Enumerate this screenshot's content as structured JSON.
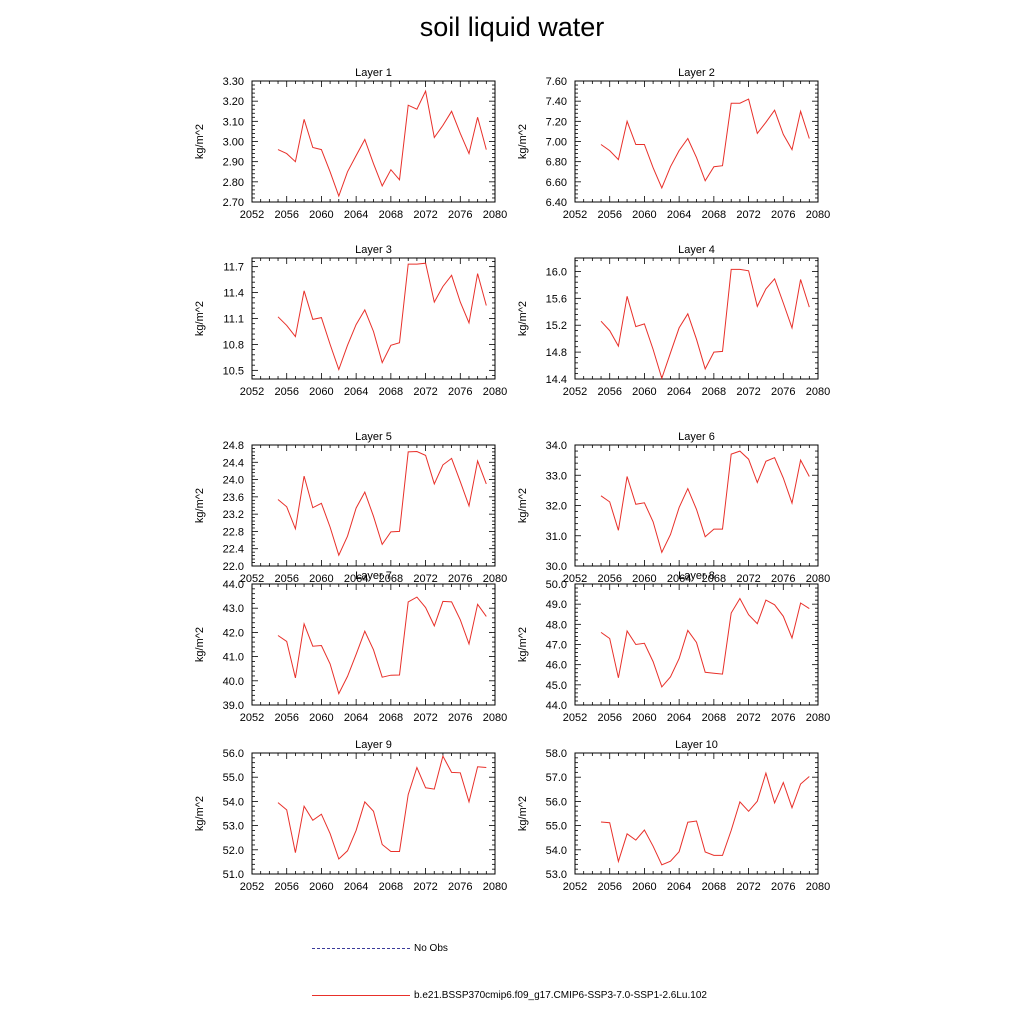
{
  "title": "soil liquid water",
  "legend": {
    "no_obs_label": "No Obs",
    "model_label": "b.e21.BSSP370cmip6.f09_g17.CMIP6-SSP3-7.0-SSP1-2.6Lu.102"
  },
  "colors": {
    "model_line": "#e8302a",
    "no_obs_line": "#3b3b9a",
    "axis": "#000000"
  },
  "chart_data": [
    {
      "type": "line",
      "title": "Layer 1",
      "xlabel": "",
      "ylabel": "kg/m^2",
      "xlim": [
        2052,
        2080
      ],
      "ylim": [
        2.7,
        3.3
      ],
      "xticks": [
        2052,
        2056,
        2060,
        2064,
        2068,
        2072,
        2076,
        2080
      ],
      "yticks": [
        "2.70",
        "2.80",
        "2.90",
        "3.00",
        "3.10",
        "3.20",
        "3.30"
      ],
      "x": [
        2055,
        2056,
        2057,
        2058,
        2059,
        2060,
        2061,
        2062,
        2063,
        2064,
        2065,
        2066,
        2067,
        2068,
        2069,
        2070,
        2071,
        2072,
        2073,
        2074,
        2075,
        2076,
        2077,
        2078,
        2079
      ],
      "series": [
        {
          "values": [
            2.96,
            2.94,
            2.9,
            3.11,
            2.97,
            2.96,
            2.85,
            2.73,
            2.85,
            2.93,
            3.01,
            2.89,
            2.78,
            2.86,
            2.81,
            3.18,
            3.16,
            3.25,
            3.02,
            3.08,
            3.15,
            3.04,
            2.94,
            3.12,
            2.96
          ]
        }
      ]
    },
    {
      "type": "line",
      "title": "Layer 2",
      "xlabel": "",
      "ylabel": "kg/m^2",
      "xlim": [
        2052,
        2080
      ],
      "ylim": [
        6.4,
        7.6
      ],
      "xticks": [
        2052,
        2056,
        2060,
        2064,
        2068,
        2072,
        2076,
        2080
      ],
      "yticks": [
        "6.40",
        "6.60",
        "6.80",
        "7.00",
        "7.20",
        "7.40",
        "7.60"
      ],
      "x": [
        2055,
        2056,
        2057,
        2058,
        2059,
        2060,
        2061,
        2062,
        2063,
        2064,
        2065,
        2066,
        2067,
        2068,
        2069,
        2070,
        2071,
        2072,
        2073,
        2074,
        2075,
        2076,
        2077,
        2078,
        2079
      ],
      "series": [
        {
          "values": [
            6.97,
            6.91,
            6.82,
            7.2,
            6.97,
            6.97,
            6.74,
            6.54,
            6.75,
            6.91,
            7.03,
            6.84,
            6.61,
            6.75,
            6.76,
            7.38,
            7.38,
            7.42,
            7.08,
            7.19,
            7.31,
            7.07,
            6.92,
            7.3,
            7.03
          ]
        }
      ]
    },
    {
      "type": "line",
      "title": "Layer 3",
      "xlabel": "",
      "ylabel": "kg/m^2",
      "xlim": [
        2052,
        2080
      ],
      "ylim": [
        10.4,
        11.8
      ],
      "xticks": [
        2052,
        2056,
        2060,
        2064,
        2068,
        2072,
        2076,
        2080
      ],
      "yticks": [
        "10.5",
        "10.8",
        "11.1",
        "11.4",
        "11.7"
      ],
      "x": [
        2055,
        2056,
        2057,
        2058,
        2059,
        2060,
        2061,
        2062,
        2063,
        2064,
        2065,
        2066,
        2067,
        2068,
        2069,
        2070,
        2071,
        2072,
        2073,
        2074,
        2075,
        2076,
        2077,
        2078,
        2079
      ],
      "series": [
        {
          "values": [
            11.12,
            11.02,
            10.89,
            11.42,
            11.09,
            11.11,
            10.8,
            10.51,
            10.79,
            11.03,
            11.2,
            10.95,
            10.59,
            10.79,
            10.82,
            11.73,
            11.73,
            11.74,
            11.29,
            11.47,
            11.6,
            11.29,
            11.05,
            11.62,
            11.25
          ]
        }
      ]
    },
    {
      "type": "line",
      "title": "Layer 4",
      "xlabel": "",
      "ylabel": "kg/m^2",
      "xlim": [
        2052,
        2080
      ],
      "ylim": [
        14.4,
        16.2
      ],
      "xticks": [
        2052,
        2056,
        2060,
        2064,
        2068,
        2072,
        2076,
        2080
      ],
      "yticks": [
        "14.4",
        "14.8",
        "15.2",
        "15.6",
        "16.0"
      ],
      "x": [
        2055,
        2056,
        2057,
        2058,
        2059,
        2060,
        2061,
        2062,
        2063,
        2064,
        2065,
        2066,
        2067,
        2068,
        2069,
        2070,
        2071,
        2072,
        2073,
        2074,
        2075,
        2076,
        2077,
        2078,
        2079
      ],
      "series": [
        {
          "values": [
            15.26,
            15.12,
            14.89,
            15.63,
            15.18,
            15.22,
            14.84,
            14.41,
            14.79,
            15.16,
            15.37,
            14.99,
            14.55,
            14.8,
            14.81,
            16.03,
            16.03,
            16.01,
            15.48,
            15.74,
            15.89,
            15.53,
            15.16,
            15.88,
            15.47
          ]
        }
      ]
    },
    {
      "type": "line",
      "title": "Layer 5",
      "xlabel": "",
      "ylabel": "kg/m^2",
      "xlim": [
        2052,
        2080
      ],
      "ylim": [
        22.0,
        24.8
      ],
      "xticks": [
        2052,
        2056,
        2060,
        2064,
        2068,
        2072,
        2076,
        2080
      ],
      "yticks": [
        "22.0",
        "22.4",
        "22.8",
        "23.2",
        "23.6",
        "24.0",
        "24.4",
        "24.8"
      ],
      "x": [
        2055,
        2056,
        2057,
        2058,
        2059,
        2060,
        2061,
        2062,
        2063,
        2064,
        2065,
        2066,
        2067,
        2068,
        2069,
        2070,
        2071,
        2072,
        2073,
        2074,
        2075,
        2076,
        2077,
        2078,
        2079
      ],
      "series": [
        {
          "values": [
            23.54,
            23.37,
            22.86,
            24.08,
            23.35,
            23.45,
            22.9,
            22.25,
            22.69,
            23.34,
            23.71,
            23.15,
            22.5,
            22.79,
            22.8,
            24.64,
            24.65,
            24.56,
            23.9,
            24.34,
            24.49,
            23.95,
            23.39,
            24.43,
            23.9
          ]
        }
      ]
    },
    {
      "type": "line",
      "title": "Layer 6",
      "xlabel": "",
      "ylabel": "kg/m^2",
      "xlim": [
        2052,
        2080
      ],
      "ylim": [
        30.0,
        34.0
      ],
      "xticks": [
        2052,
        2056,
        2060,
        2064,
        2068,
        2072,
        2076,
        2080
      ],
      "yticks": [
        "30.0",
        "31.0",
        "32.0",
        "33.0",
        "34.0"
      ],
      "x": [
        2055,
        2056,
        2057,
        2058,
        2059,
        2060,
        2061,
        2062,
        2063,
        2064,
        2065,
        2066,
        2067,
        2068,
        2069,
        2070,
        2071,
        2072,
        2073,
        2074,
        2075,
        2076,
        2077,
        2078,
        2079
      ],
      "series": [
        {
          "values": [
            32.32,
            32.12,
            31.18,
            32.96,
            32.04,
            32.09,
            31.46,
            30.45,
            31.04,
            31.93,
            32.56,
            31.87,
            30.97,
            31.22,
            31.22,
            33.7,
            33.8,
            33.53,
            32.76,
            33.46,
            33.58,
            32.91,
            32.08,
            33.5,
            32.96
          ]
        }
      ]
    },
    {
      "type": "line",
      "title": "Layer 7",
      "xlabel": "",
      "ylabel": "kg/m^2",
      "xlim": [
        2052,
        2080
      ],
      "ylim": [
        39.0,
        44.0
      ],
      "xticks": [
        2052,
        2056,
        2060,
        2064,
        2068,
        2072,
        2076,
        2080
      ],
      "yticks": [
        "39.0",
        "40.0",
        "41.0",
        "42.0",
        "43.0",
        "44.0"
      ],
      "x": [
        2055,
        2056,
        2057,
        2058,
        2059,
        2060,
        2061,
        2062,
        2063,
        2064,
        2065,
        2066,
        2067,
        2068,
        2069,
        2070,
        2071,
        2072,
        2073,
        2074,
        2075,
        2076,
        2077,
        2078,
        2079
      ],
      "series": [
        {
          "values": [
            41.87,
            41.63,
            40.12,
            42.35,
            41.43,
            41.46,
            40.7,
            39.47,
            40.18,
            41.09,
            42.05,
            41.28,
            40.15,
            40.23,
            40.24,
            43.26,
            43.46,
            43.03,
            42.27,
            43.28,
            43.26,
            42.52,
            41.52,
            43.16,
            42.66
          ]
        }
      ]
    },
    {
      "type": "line",
      "title": "Layer 8",
      "xlabel": "",
      "ylabel": "kg/m^2",
      "xlim": [
        2052,
        2080
      ],
      "ylim": [
        44.0,
        50.0
      ],
      "xticks": [
        2052,
        2056,
        2060,
        2064,
        2068,
        2072,
        2076,
        2080
      ],
      "yticks": [
        "44.0",
        "45.0",
        "46.0",
        "47.0",
        "48.0",
        "49.0",
        "50.0"
      ],
      "x": [
        2055,
        2056,
        2057,
        2058,
        2059,
        2060,
        2061,
        2062,
        2063,
        2064,
        2065,
        2066,
        2067,
        2068,
        2069,
        2070,
        2071,
        2072,
        2073,
        2074,
        2075,
        2076,
        2077,
        2078,
        2079
      ],
      "series": [
        {
          "values": [
            47.6,
            47.3,
            45.35,
            47.67,
            47.0,
            47.06,
            46.15,
            44.9,
            45.4,
            46.3,
            47.7,
            47.1,
            45.62,
            45.57,
            45.53,
            48.56,
            49.28,
            48.48,
            48.03,
            49.2,
            48.97,
            48.4,
            47.32,
            49.06,
            48.78
          ]
        }
      ]
    },
    {
      "type": "line",
      "title": "Layer 9",
      "xlabel": "",
      "ylabel": "kg/m^2",
      "xlim": [
        2052,
        2080
      ],
      "ylim": [
        51.0,
        56.0
      ],
      "xticks": [
        2052,
        2056,
        2060,
        2064,
        2068,
        2072,
        2076,
        2080
      ],
      "yticks": [
        "51.0",
        "52.0",
        "53.0",
        "54.0",
        "55.0",
        "56.0"
      ],
      "x": [
        2055,
        2056,
        2057,
        2058,
        2059,
        2060,
        2061,
        2062,
        2063,
        2064,
        2065,
        2066,
        2067,
        2068,
        2069,
        2070,
        2071,
        2072,
        2073,
        2074,
        2075,
        2076,
        2077,
        2078,
        2079
      ],
      "series": [
        {
          "values": [
            53.95,
            53.65,
            51.88,
            53.8,
            53.22,
            53.47,
            52.67,
            51.62,
            51.96,
            52.8,
            53.98,
            53.59,
            52.22,
            51.93,
            51.93,
            54.28,
            55.4,
            54.56,
            54.51,
            55.87,
            55.2,
            55.18,
            53.98,
            55.43,
            55.4
          ]
        }
      ]
    },
    {
      "type": "line",
      "title": "Layer 10",
      "xlabel": "",
      "ylabel": "kg/m^2",
      "xlim": [
        2052,
        2080
      ],
      "ylim": [
        53.0,
        58.0
      ],
      "xticks": [
        2052,
        2056,
        2060,
        2064,
        2068,
        2072,
        2076,
        2080
      ],
      "yticks": [
        "53.0",
        "54.0",
        "55.0",
        "56.0",
        "57.0",
        "58.0"
      ],
      "x": [
        2055,
        2056,
        2057,
        2058,
        2059,
        2060,
        2061,
        2062,
        2063,
        2064,
        2065,
        2066,
        2067,
        2068,
        2069,
        2070,
        2071,
        2072,
        2073,
        2074,
        2075,
        2076,
        2077,
        2078,
        2079
      ],
      "series": [
        {
          "values": [
            55.15,
            55.12,
            53.52,
            54.66,
            54.4,
            54.82,
            54.15,
            53.38,
            53.53,
            53.92,
            55.14,
            55.19,
            53.91,
            53.77,
            53.77,
            54.8,
            55.98,
            55.59,
            56.01,
            57.17,
            55.94,
            56.78,
            55.74,
            56.72,
            57.03
          ]
        }
      ]
    }
  ]
}
